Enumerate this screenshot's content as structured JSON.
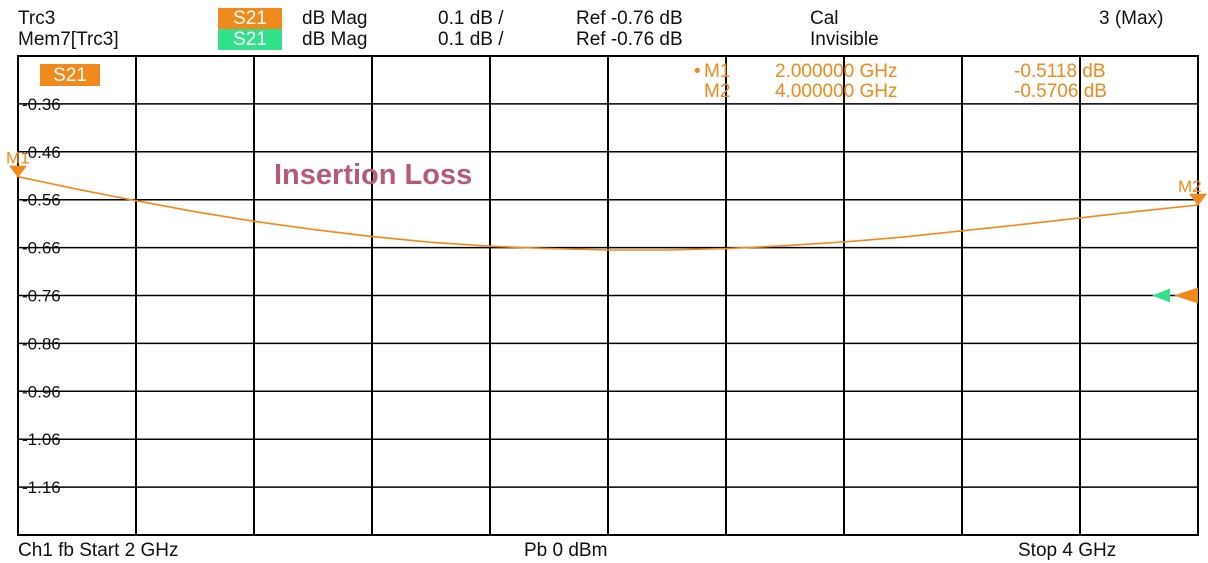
{
  "header": {
    "row1": {
      "trace": "Trc3",
      "param": "S21",
      "format": "dB Mag",
      "scale": "0.1 dB /",
      "ref": "Ref -0.76 dB",
      "status": "Cal",
      "right": "3 (Max)"
    },
    "row2": {
      "trace": "Mem7[Trc3]",
      "param": "S21",
      "format": "dB Mag",
      "scale": "0.1 dB /",
      "ref": "Ref -0.76 dB",
      "status": "Invisible"
    }
  },
  "footer": {
    "left": "Ch1  fb  Start  2 GHz",
    "center": "Pb    0 dBm",
    "right": "Stop  4 GHz"
  },
  "colors": {
    "trace": "#f08a1c",
    "memory": "#33e08c",
    "frame": "#000000",
    "annotation": "#b55a7a",
    "label_bg": "#f08a1c"
  },
  "chart_data": {
    "type": "line",
    "title": "Insertion Loss",
    "trace_label": "S21",
    "xlabel": "",
    "ylabel": "",
    "xlim": [
      2,
      4
    ],
    "x_unit": "GHz",
    "ylim": [
      -1.26,
      -0.26
    ],
    "y_unit": "dB",
    "y_ticks": [
      "-0.36",
      "-0.46",
      "-0.56",
      "-0.66",
      "-0.76",
      "-0.86",
      "-0.96",
      "-1.06",
      "-1.16"
    ],
    "y_tick_values": [
      -0.36,
      -0.46,
      -0.56,
      -0.66,
      -0.76,
      -0.86,
      -0.96,
      -1.06,
      -1.16
    ],
    "grid": true,
    "reference_level": -0.76,
    "series": [
      {
        "name": "S21",
        "x": [
          2.0,
          2.1,
          2.2,
          2.3,
          2.4,
          2.5,
          2.6,
          2.7,
          2.8,
          2.9,
          3.0,
          3.1,
          3.2,
          3.3,
          3.4,
          3.5,
          3.6,
          3.7,
          3.8,
          3.9,
          4.0
        ],
        "values": [
          -0.512,
          -0.538,
          -0.562,
          -0.585,
          -0.605,
          -0.622,
          -0.637,
          -0.649,
          -0.657,
          -0.662,
          -0.665,
          -0.665,
          -0.662,
          -0.656,
          -0.648,
          -0.638,
          -0.625,
          -0.612,
          -0.598,
          -0.584,
          -0.571
        ]
      }
    ],
    "markers": {
      "legend": [
        {
          "label": "M1",
          "active": "•",
          "freq": "2.000000 GHz",
          "value": "-0.5118 dB"
        },
        {
          "label": "M2",
          "active": "",
          "freq": "4.000000 GHz",
          "value": "-0.5706 dB"
        }
      ],
      "points": [
        {
          "label": "M1",
          "x": 2.0,
          "y": -0.5118
        },
        {
          "label": "M2",
          "x": 4.0,
          "y": -0.5706
        }
      ]
    }
  }
}
